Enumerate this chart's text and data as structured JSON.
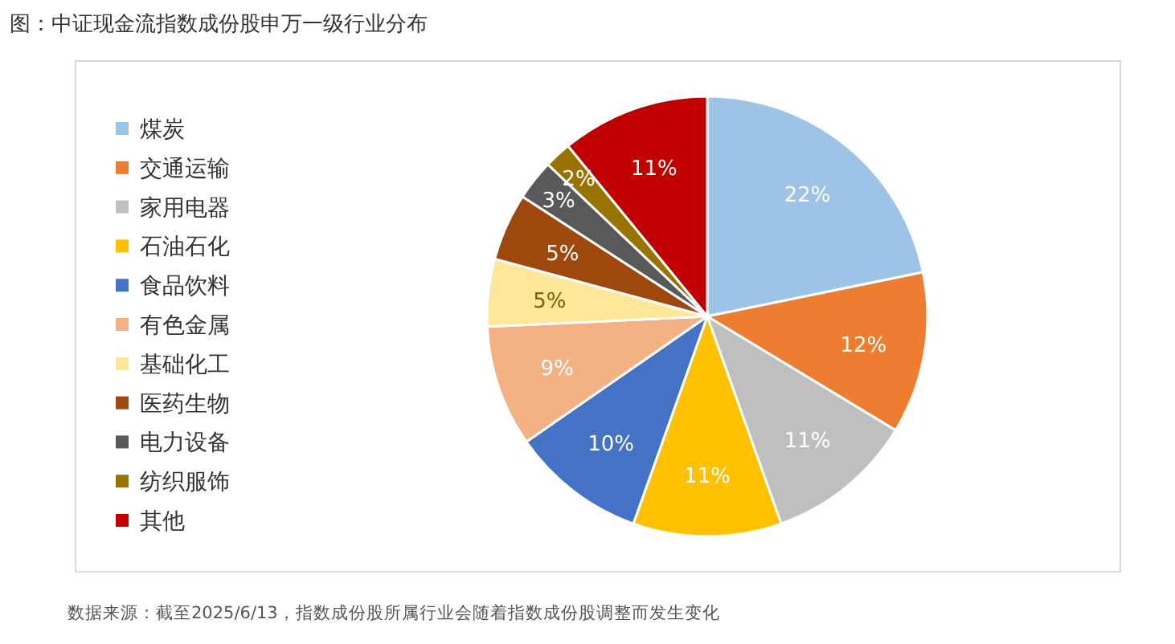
{
  "chart_data": {
    "type": "pie",
    "title": "图：中证现金流指数成份股申万一级行业分布",
    "categories": [
      "煤炭",
      "交通运输",
      "家用电器",
      "石油石化",
      "食品饮料",
      "有色金属",
      "基础化工",
      "医药生物",
      "电力设备",
      "纺织服饰",
      "其他"
    ],
    "values": [
      22,
      12,
      11,
      11,
      10,
      9,
      5,
      5,
      3,
      2,
      11
    ],
    "colors": [
      "#9dc3e6",
      "#ed7d31",
      "#bfbfbf",
      "#ffc000",
      "#4472c4",
      "#f4b183",
      "#ffe699",
      "#9e480e",
      "#595959",
      "#997300",
      "#c00000"
    ],
    "value_labels": [
      "22%",
      "12%",
      "11%",
      "11%",
      "10%",
      "9%",
      "5%",
      "5%",
      "3%",
      "2%",
      "11%"
    ],
    "legend": "left",
    "annotations": [
      "数据来源：截至2025/6/13，指数成份股所属行业会随着指数成份股调整而发生变化"
    ]
  }
}
